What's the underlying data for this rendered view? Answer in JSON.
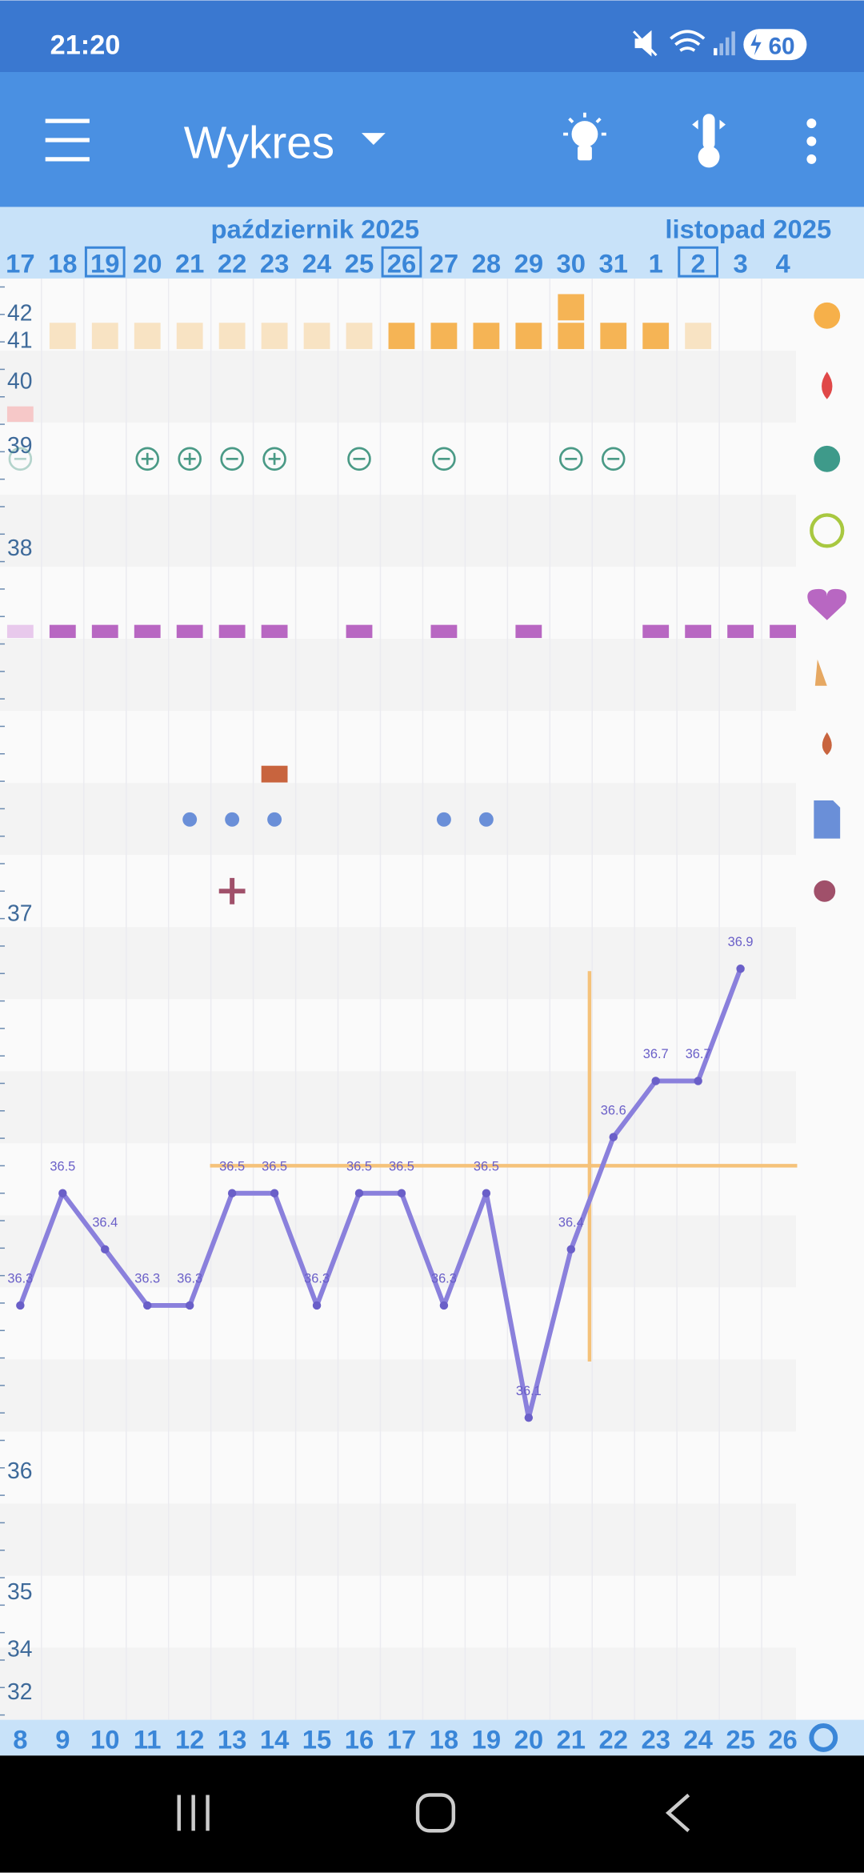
{
  "status": {
    "time": "21:20",
    "battery": "60"
  },
  "toolbar": {
    "title": "Wykres"
  },
  "header": {
    "months": [
      "październik 2025",
      "listopad 2025"
    ],
    "days": [
      "17",
      "18",
      "19",
      "20",
      "21",
      "22",
      "23",
      "24",
      "25",
      "26",
      "27",
      "28",
      "29",
      "30",
      "31",
      "1",
      "2",
      "3",
      "4"
    ]
  },
  "axis_labels": [
    "42",
    "41",
    "40",
    "39",
    "38",
    "37",
    "36",
    "35",
    "34",
    "32"
  ],
  "chart_data": {
    "type": "line",
    "color": "#8a80dc",
    "categories": [
      "17",
      "18",
      "19",
      "20",
      "21",
      "22",
      "23",
      "24",
      "25",
      "26",
      "27",
      "28",
      "29",
      "30",
      "31",
      "1",
      "2",
      "3",
      "4"
    ],
    "values": [
      36.3,
      36.5,
      36.4,
      36.3,
      36.3,
      36.5,
      36.5,
      36.3,
      36.5,
      36.5,
      36.3,
      36.5,
      36.1,
      36.4,
      36.6,
      36.7,
      36.7,
      36.9,
      null
    ]
  },
  "cycle_days": [
    "8",
    "9",
    "10",
    "11",
    "12",
    "13",
    "14",
    "15",
    "16",
    "17",
    "18",
    "19",
    "20",
    "21",
    "22",
    "23",
    "24",
    "25",
    "26"
  ]
}
